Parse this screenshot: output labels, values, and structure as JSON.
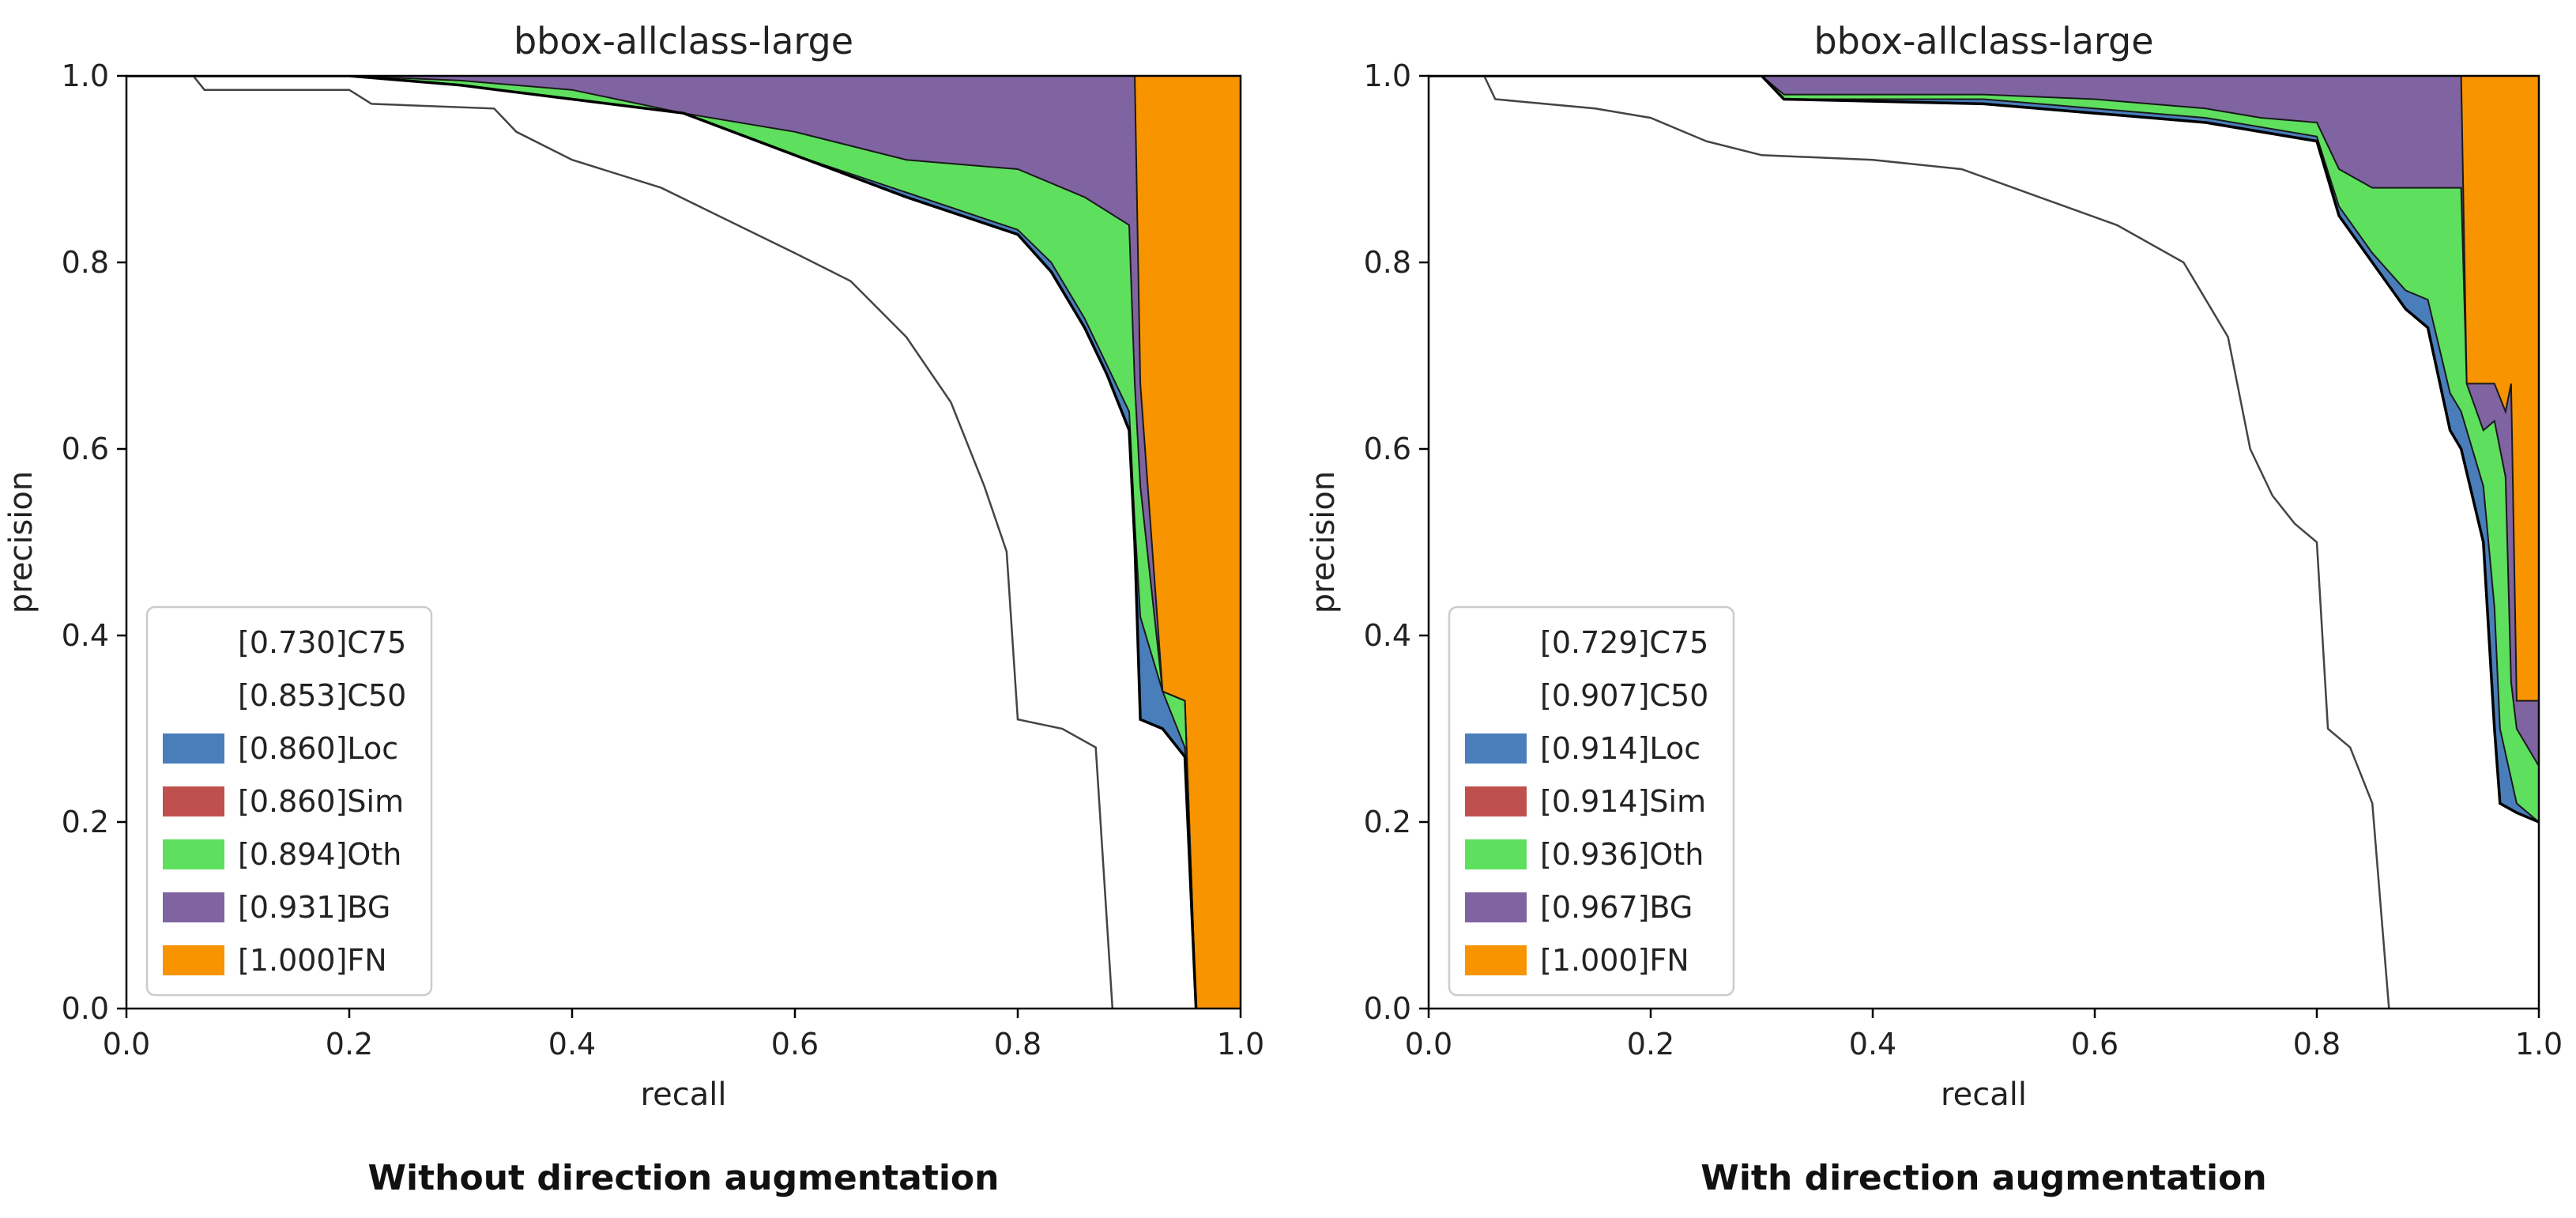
{
  "chart_data": [
    {
      "type": "area",
      "title": "bbox-allclass-large",
      "xlabel": "recall",
      "ylabel": "precision",
      "caption": "Without direction augmentation",
      "xlim": [
        0.0,
        1.0
      ],
      "ylim": [
        0.0,
        1.0
      ],
      "xticks": [
        "0.0",
        "0.2",
        "0.4",
        "0.6",
        "0.8",
        "1.0"
      ],
      "yticks": [
        "0.0",
        "0.2",
        "0.4",
        "0.6",
        "0.8",
        "1.0"
      ],
      "legend_position": "lower-left",
      "legend": [
        {
          "label": "[0.730]C75",
          "color": null
        },
        {
          "label": "[0.853]C50",
          "color": null
        },
        {
          "label": "[0.860]Loc",
          "color": "#4a7ebb"
        },
        {
          "label": "[0.860]Sim",
          "color": "#c0504d"
        },
        {
          "label": "[0.894]Oth",
          "color": "#5ee05e"
        },
        {
          "label": "[0.931]BG",
          "color": "#8064a2"
        },
        {
          "label": "[1.000]FN",
          "color": "#f79400"
        }
      ],
      "series": [
        {
          "name": "C75",
          "points": [
            [
              0.0,
              1.0
            ],
            [
              0.06,
              1.0
            ],
            [
              0.07,
              0.985
            ],
            [
              0.2,
              0.985
            ],
            [
              0.22,
              0.97
            ],
            [
              0.33,
              0.965
            ],
            [
              0.35,
              0.94
            ],
            [
              0.4,
              0.91
            ],
            [
              0.48,
              0.88
            ],
            [
              0.6,
              0.81
            ],
            [
              0.65,
              0.78
            ],
            [
              0.7,
              0.72
            ],
            [
              0.74,
              0.65
            ],
            [
              0.77,
              0.56
            ],
            [
              0.79,
              0.49
            ],
            [
              0.8,
              0.31
            ],
            [
              0.84,
              0.3
            ],
            [
              0.87,
              0.28
            ],
            [
              0.885,
              0.0
            ]
          ]
        },
        {
          "name": "C50",
          "points": [
            [
              0.0,
              1.0
            ],
            [
              0.2,
              1.0
            ],
            [
              0.3,
              0.99
            ],
            [
              0.4,
              0.975
            ],
            [
              0.5,
              0.96
            ],
            [
              0.6,
              0.915
            ],
            [
              0.7,
              0.87
            ],
            [
              0.8,
              0.83
            ],
            [
              0.83,
              0.79
            ],
            [
              0.86,
              0.73
            ],
            [
              0.88,
              0.68
            ],
            [
              0.9,
              0.62
            ],
            [
              0.905,
              0.5
            ],
            [
              0.91,
              0.31
            ],
            [
              0.93,
              0.3
            ],
            [
              0.95,
              0.27
            ],
            [
              0.96,
              0.0
            ]
          ]
        },
        {
          "name": "Loc",
          "points": [
            [
              0.0,
              1.0
            ],
            [
              0.2,
              1.0
            ],
            [
              0.3,
              0.99
            ],
            [
              0.4,
              0.975
            ],
            [
              0.5,
              0.96
            ],
            [
              0.6,
              0.915
            ],
            [
              0.7,
              0.875
            ],
            [
              0.8,
              0.835
            ],
            [
              0.83,
              0.8
            ],
            [
              0.86,
              0.74
            ],
            [
              0.88,
              0.69
            ],
            [
              0.9,
              0.64
            ],
            [
              0.905,
              0.52
            ],
            [
              0.91,
              0.42
            ],
            [
              0.93,
              0.34
            ],
            [
              0.95,
              0.28
            ],
            [
              0.96,
              0.0
            ]
          ]
        },
        {
          "name": "Sim",
          "points": [
            [
              0.0,
              1.0
            ],
            [
              0.2,
              1.0
            ],
            [
              0.3,
              0.99
            ],
            [
              0.4,
              0.975
            ],
            [
              0.5,
              0.96
            ],
            [
              0.6,
              0.915
            ],
            [
              0.7,
              0.875
            ],
            [
              0.8,
              0.835
            ],
            [
              0.83,
              0.8
            ],
            [
              0.86,
              0.74
            ],
            [
              0.88,
              0.69
            ],
            [
              0.9,
              0.64
            ],
            [
              0.905,
              0.52
            ],
            [
              0.91,
              0.42
            ],
            [
              0.93,
              0.34
            ],
            [
              0.95,
              0.28
            ],
            [
              0.96,
              0.0
            ]
          ]
        },
        {
          "name": "Oth",
          "points": [
            [
              0.0,
              1.0
            ],
            [
              0.2,
              1.0
            ],
            [
              0.3,
              0.995
            ],
            [
              0.4,
              0.985
            ],
            [
              0.5,
              0.96
            ],
            [
              0.6,
              0.94
            ],
            [
              0.7,
              0.91
            ],
            [
              0.8,
              0.9
            ],
            [
              0.86,
              0.87
            ],
            [
              0.9,
              0.84
            ],
            [
              0.905,
              0.67
            ],
            [
              0.91,
              0.56
            ],
            [
              0.93,
              0.34
            ],
            [
              0.95,
              0.33
            ],
            [
              0.96,
              0.0
            ]
          ]
        },
        {
          "name": "BG",
          "points": [
            [
              0.0,
              1.0
            ],
            [
              0.5,
              1.0
            ],
            [
              0.6,
              1.0
            ],
            [
              0.7,
              1.0
            ],
            [
              0.8,
              1.0
            ],
            [
              0.9,
              1.0
            ],
            [
              0.905,
              1.0
            ],
            [
              0.91,
              0.67
            ],
            [
              0.93,
              0.34
            ],
            [
              0.95,
              0.33
            ],
            [
              0.96,
              0.0
            ]
          ]
        },
        {
          "name": "FN",
          "points": [
            [
              0.0,
              1.0
            ],
            [
              0.91,
              1.0
            ],
            [
              1.0,
              1.0
            ]
          ]
        }
      ]
    },
    {
      "type": "area",
      "title": "bbox-allclass-large",
      "xlabel": "recall",
      "ylabel": "precision",
      "caption": "With direction augmentation",
      "xlim": [
        0.0,
        1.0
      ],
      "ylim": [
        0.0,
        1.0
      ],
      "xticks": [
        "0.0",
        "0.2",
        "0.4",
        "0.6",
        "0.8",
        "1.0"
      ],
      "yticks": [
        "0.0",
        "0.2",
        "0.4",
        "0.6",
        "0.8",
        "1.0"
      ],
      "legend_position": "lower-left",
      "legend": [
        {
          "label": "[0.729]C75",
          "color": null
        },
        {
          "label": "[0.907]C50",
          "color": null
        },
        {
          "label": "[0.914]Loc",
          "color": "#4a7ebb"
        },
        {
          "label": "[0.914]Sim",
          "color": "#c0504d"
        },
        {
          "label": "[0.936]Oth",
          "color": "#5ee05e"
        },
        {
          "label": "[0.967]BG",
          "color": "#8064a2"
        },
        {
          "label": "[1.000]FN",
          "color": "#f79400"
        }
      ],
      "series": [
        {
          "name": "C75",
          "points": [
            [
              0.0,
              1.0
            ],
            [
              0.05,
              1.0
            ],
            [
              0.06,
              0.975
            ],
            [
              0.15,
              0.965
            ],
            [
              0.2,
              0.955
            ],
            [
              0.25,
              0.93
            ],
            [
              0.3,
              0.915
            ],
            [
              0.4,
              0.91
            ],
            [
              0.48,
              0.9
            ],
            [
              0.55,
              0.87
            ],
            [
              0.62,
              0.84
            ],
            [
              0.68,
              0.8
            ],
            [
              0.7,
              0.76
            ],
            [
              0.72,
              0.72
            ],
            [
              0.74,
              0.6
            ],
            [
              0.76,
              0.55
            ],
            [
              0.78,
              0.52
            ],
            [
              0.8,
              0.5
            ],
            [
              0.81,
              0.3
            ],
            [
              0.83,
              0.28
            ],
            [
              0.85,
              0.22
            ],
            [
              0.865,
              0.0
            ]
          ]
        },
        {
          "name": "C50",
          "points": [
            [
              0.0,
              1.0
            ],
            [
              0.3,
              1.0
            ],
            [
              0.32,
              0.975
            ],
            [
              0.5,
              0.97
            ],
            [
              0.6,
              0.96
            ],
            [
              0.7,
              0.95
            ],
            [
              0.8,
              0.93
            ],
            [
              0.82,
              0.85
            ],
            [
              0.85,
              0.8
            ],
            [
              0.88,
              0.75
            ],
            [
              0.9,
              0.73
            ],
            [
              0.92,
              0.62
            ],
            [
              0.93,
              0.6
            ],
            [
              0.95,
              0.5
            ],
            [
              0.96,
              0.3
            ],
            [
              0.965,
              0.22
            ],
            [
              0.98,
              0.21
            ],
            [
              1.0,
              0.2
            ]
          ]
        },
        {
          "name": "Loc",
          "points": [
            [
              0.0,
              1.0
            ],
            [
              0.3,
              1.0
            ],
            [
              0.32,
              0.975
            ],
            [
              0.5,
              0.975
            ],
            [
              0.6,
              0.965
            ],
            [
              0.7,
              0.955
            ],
            [
              0.8,
              0.935
            ],
            [
              0.82,
              0.86
            ],
            [
              0.85,
              0.81
            ],
            [
              0.88,
              0.77
            ],
            [
              0.9,
              0.76
            ],
            [
              0.92,
              0.66
            ],
            [
              0.93,
              0.64
            ],
            [
              0.95,
              0.56
            ],
            [
              0.96,
              0.43
            ],
            [
              0.965,
              0.3
            ],
            [
              0.98,
              0.22
            ],
            [
              1.0,
              0.2
            ]
          ]
        },
        {
          "name": "Sim",
          "points": [
            [
              0.0,
              1.0
            ],
            [
              0.3,
              1.0
            ],
            [
              0.32,
              0.975
            ],
            [
              0.5,
              0.975
            ],
            [
              0.6,
              0.965
            ],
            [
              0.7,
              0.955
            ],
            [
              0.8,
              0.935
            ],
            [
              0.82,
              0.86
            ],
            [
              0.85,
              0.81
            ],
            [
              0.88,
              0.77
            ],
            [
              0.9,
              0.76
            ],
            [
              0.92,
              0.66
            ],
            [
              0.93,
              0.64
            ],
            [
              0.95,
              0.56
            ],
            [
              0.96,
              0.43
            ],
            [
              0.965,
              0.3
            ],
            [
              0.98,
              0.22
            ],
            [
              1.0,
              0.2
            ]
          ]
        },
        {
          "name": "Oth",
          "points": [
            [
              0.0,
              1.0
            ],
            [
              0.3,
              1.0
            ],
            [
              0.32,
              0.98
            ],
            [
              0.5,
              0.98
            ],
            [
              0.6,
              0.975
            ],
            [
              0.7,
              0.965
            ],
            [
              0.75,
              0.955
            ],
            [
              0.8,
              0.95
            ],
            [
              0.82,
              0.9
            ],
            [
              0.85,
              0.88
            ],
            [
              0.9,
              0.88
            ],
            [
              0.93,
              0.88
            ],
            [
              0.935,
              0.67
            ],
            [
              0.95,
              0.62
            ],
            [
              0.96,
              0.63
            ],
            [
              0.97,
              0.57
            ],
            [
              0.975,
              0.35
            ],
            [
              0.98,
              0.3
            ],
            [
              1.0,
              0.26
            ]
          ]
        },
        {
          "name": "BG",
          "points": [
            [
              0.0,
              1.0
            ],
            [
              0.93,
              1.0
            ],
            [
              0.935,
              0.67
            ],
            [
              0.96,
              0.67
            ],
            [
              0.97,
              0.64
            ],
            [
              0.975,
              0.67
            ],
            [
              0.98,
              0.33
            ],
            [
              1.0,
              0.33
            ]
          ]
        },
        {
          "name": "FN",
          "points": [
            [
              0.0,
              1.0
            ],
            [
              0.93,
              1.0
            ],
            [
              1.0,
              1.0
            ]
          ]
        }
      ]
    }
  ]
}
